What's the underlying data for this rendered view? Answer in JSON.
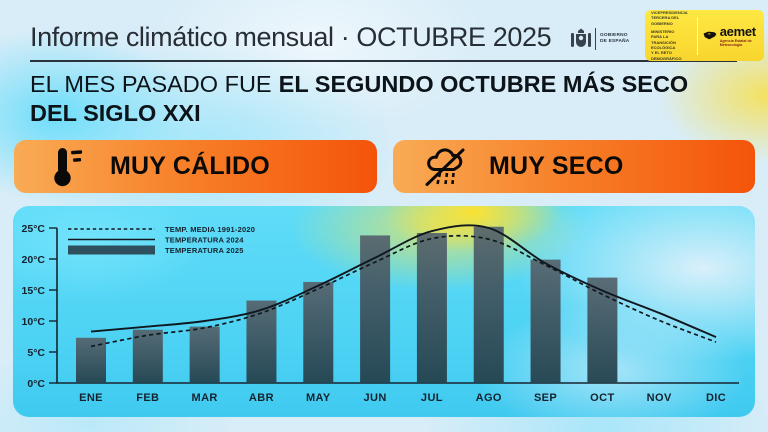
{
  "header": {
    "title": "Informe climático mensual · OCTUBRE 2025",
    "gov": {
      "name_line1": "GOBIERNO",
      "name_line2": "DE ESPAÑA"
    },
    "ministry": {
      "line1": "VICEPRESIDENCIA",
      "line2": "TERCERA DEL GOBIERNO",
      "line3": "MINISTERIO",
      "line4": "PARA LA TRANSICIÓN ECOLÓGICA",
      "line5": "Y EL RETO DEMOGRÁFICO"
    },
    "aemet": {
      "wordmark": "aemet",
      "tagline": "Agencia Estatal de Meteorología"
    }
  },
  "headline": {
    "normal": "EL MES PASADO FUE",
    "bold": "EL SEGUNDO OCTUBRE MÁS SECO DEL SIGLO XXI"
  },
  "badges": {
    "warm": {
      "label": "MUY CÁLIDO",
      "icon": "thermometer-icon"
    },
    "dry": {
      "label": "MUY SECO",
      "icon": "crossed-rain-icon"
    }
  },
  "chart_data": {
    "type": "bar",
    "title": "",
    "xlabel": "",
    "ylabel": "°C",
    "categories": [
      "ENE",
      "FEB",
      "MAR",
      "ABR",
      "MAY",
      "JUN",
      "JUL",
      "AGO",
      "SEP",
      "OCT",
      "NOV",
      "DIC"
    ],
    "series": [
      {
        "name": "TEMP. MEDIA 1991-2020",
        "type": "line",
        "style": "dashed",
        "color": "#10181f",
        "values": [
          5.9,
          7.7,
          8.9,
          11.3,
          15.2,
          19.5,
          23.3,
          23.2,
          19.0,
          14.3,
          10.1,
          6.6
        ]
      },
      {
        "name": "TEMPERATURA 2024",
        "type": "line",
        "style": "solid",
        "color": "#10181f",
        "values": [
          8.3,
          9.1,
          10.0,
          11.8,
          15.7,
          20.2,
          24.5,
          25.0,
          19.3,
          14.9,
          11.3,
          7.4
        ]
      },
      {
        "name": "TEMPERATURA 2025",
        "type": "bar",
        "color": "#2e505e",
        "values": [
          7.3,
          8.6,
          9.1,
          13.3,
          16.3,
          23.8,
          24.2,
          25.2,
          19.9,
          17.0,
          null,
          null
        ]
      }
    ],
    "ylim": [
      0,
      25
    ],
    "yticks": [
      0,
      5,
      10,
      15,
      20,
      25
    ],
    "ytick_labels": [
      "0°C",
      "5°C",
      "10°C",
      "15°C",
      "20°C",
      "25°C"
    ],
    "legend_position": "top-left",
    "grid": false
  },
  "colors": {
    "badge_gradient_start": "#f9ab55",
    "badge_gradient_end": "#f4540a",
    "panel_cyan": "#55d8f7",
    "accent_yellow": "#ffe23f",
    "text_dark": "#15202b",
    "bar_fill": "#2e505e"
  }
}
